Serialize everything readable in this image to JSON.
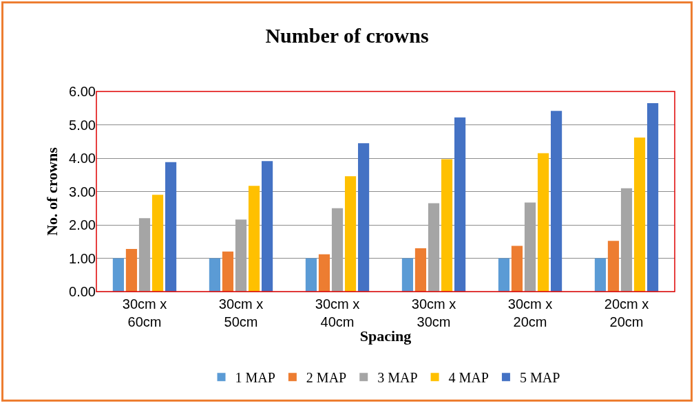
{
  "chart_data": {
    "type": "bar",
    "title": "Number of crowns",
    "xlabel": "Spacing",
    "ylabel": "No. of crowns",
    "categories": [
      "30cm x 60cm",
      "30cm x 50cm",
      "30cm x 40cm",
      "30cm x 30cm",
      "30cm x 20cm",
      "20cm x 20cm"
    ],
    "series": [
      {
        "name": "1 MAP",
        "color": "#5b9bd5",
        "values": [
          1.0,
          1.0,
          1.0,
          1.0,
          1.0,
          1.0
        ]
      },
      {
        "name": "2 MAP",
        "color": "#ed7d31",
        "values": [
          1.28,
          1.2,
          1.12,
          1.3,
          1.37,
          1.52
        ]
      },
      {
        "name": "3 MAP",
        "color": "#a5a5a5",
        "values": [
          2.2,
          2.16,
          2.5,
          2.65,
          2.67,
          3.1
        ]
      },
      {
        "name": "4 MAP",
        "color": "#ffc000",
        "values": [
          2.9,
          3.17,
          3.46,
          3.97,
          4.15,
          4.62
        ]
      },
      {
        "name": "5 MAP",
        "color": "#4472c4",
        "values": [
          3.88,
          3.91,
          4.45,
          5.22,
          5.42,
          5.65
        ]
      }
    ],
    "ylim": [
      0,
      6
    ],
    "yticks": [
      {
        "value": 0,
        "label": "0.00"
      },
      {
        "value": 1,
        "label": "1.00"
      },
      {
        "value": 2,
        "label": "2.00"
      },
      {
        "value": 3,
        "label": "3.00"
      },
      {
        "value": 4,
        "label": "4.00"
      },
      {
        "value": 5,
        "label": "5.00"
      },
      {
        "value": 6,
        "label": "6.00"
      }
    ],
    "grid": "y",
    "legend": "bottom"
  }
}
